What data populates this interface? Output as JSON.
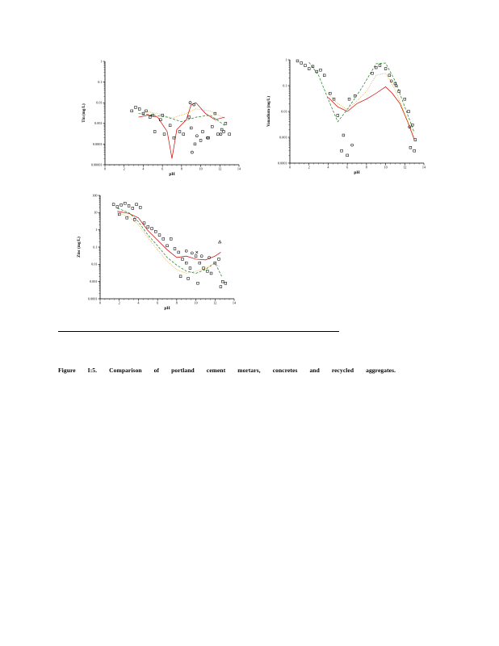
{
  "caption": {
    "text": "Figure I:5. Comparison of portland cement mortars, concretes and recycled aggregates."
  },
  "chart_data": [
    {
      "name": "tin",
      "type": "scatter",
      "title": "",
      "xlabel": "pH",
      "ylabel": "Tin  (mg/L)",
      "xlim": [
        0,
        14
      ],
      "xticks": [
        0,
        2,
        4,
        6,
        8,
        10,
        12,
        14
      ],
      "ylog": true,
      "ylim": [
        1e-05,
        1
      ],
      "yticks": [
        "1",
        "0.1",
        "0.01",
        "0.001",
        "0.0001",
        "0.00001"
      ],
      "grid": false,
      "legend": "none",
      "series": [
        {
          "name": "line-red-solid",
          "style": "line",
          "color": "#cc0000",
          "dash": "",
          "x": [
            3.5,
            4.5,
            5.5,
            6.5,
            7,
            7.5,
            8.5,
            9,
            9.5,
            10.5,
            11.5,
            12.5
          ],
          "y": [
            0.002,
            0.0025,
            0.002,
            0.0004,
            2e-05,
            0.0005,
            0.0015,
            0.008,
            0.01,
            0.003,
            0.0015,
            0.002
          ]
        },
        {
          "name": "line-green-dashed",
          "style": "line",
          "color": "#1a7a1a",
          "dash": "3 1.8",
          "x": [
            3.5,
            5,
            6.5,
            8,
            9.5,
            11,
            12.5
          ],
          "y": [
            0.003,
            0.0025,
            0.002,
            0.0012,
            0.002,
            0.0025,
            0.0008
          ]
        },
        {
          "name": "line-orange-dotted",
          "style": "line",
          "color": "#d99000",
          "dash": "0.8 1.4",
          "x": [
            4,
            5.5,
            7,
            8.5,
            9.5,
            11,
            12.5
          ],
          "y": [
            0.004,
            0.003,
            0.0018,
            0.003,
            0.005,
            0.004,
            0.0018
          ]
        },
        {
          "name": "markers-square",
          "style": "scatter",
          "marker": "square",
          "color": "#000000",
          "x": [
            2.8,
            3.2,
            3.6,
            4.0,
            4.3,
            4.7,
            5.2,
            5.8,
            6.2,
            6.8,
            7.2,
            7.8,
            8.2,
            8.8,
            9.4,
            10.2,
            10.8,
            11.2,
            11.8,
            12.2,
            12.6,
            13.0,
            5.0,
            6.0,
            9.0,
            10.0,
            11.5,
            12.4
          ],
          "y": [
            0.004,
            0.006,
            0.005,
            0.003,
            0.004,
            0.002,
            0.0004,
            0.0015,
            0.0003,
            0.0008,
            0.0002,
            0.0004,
            0.0003,
            0.002,
            0.0001,
            0.0004,
            0.0002,
            0.0007,
            0.0003,
            0.0005,
            0.001,
            0.0003,
            0.0025,
            0.0025,
            0.0006,
            0.00015,
            0.003,
            0.0004
          ]
        },
        {
          "name": "markers-circle",
          "style": "scatter",
          "marker": "circle",
          "color": "#000000",
          "x": [
            8.9,
            9.3,
            9.6,
            10.7,
            12.1,
            9.1
          ],
          "y": [
            0.01,
            0.008,
            0.00025,
            0.0002,
            0.0003,
            4e-05
          ]
        }
      ]
    },
    {
      "name": "vanadium",
      "type": "scatter",
      "title": "",
      "xlabel": "pH",
      "ylabel": "Vanadium  (mg/L)",
      "xlim": [
        0,
        14
      ],
      "xticks": [
        0,
        2,
        4,
        6,
        8,
        10,
        12,
        14
      ],
      "ylog": true,
      "ylim": [
        0.0001,
        1
      ],
      "yticks": [
        "1",
        "0.1",
        "0.01",
        "0.001",
        "0.0001"
      ],
      "grid": false,
      "legend": "none",
      "series": [
        {
          "name": "line-red-solid",
          "style": "line",
          "color": "#cc0000",
          "dash": "",
          "x": [
            4,
            5,
            6,
            7,
            8,
            9,
            10,
            10.7,
            11.5,
            12.3,
            13
          ],
          "y": [
            0.035,
            0.015,
            0.01,
            0.02,
            0.03,
            0.05,
            0.09,
            0.05,
            0.02,
            0.004,
            0.0008
          ]
        },
        {
          "name": "line-green-dashed",
          "style": "line",
          "color": "#1a7a1a",
          "dash": "3 1.8",
          "x": [
            2,
            3,
            4,
            5,
            6,
            7.5,
            9,
            10,
            11,
            12,
            13
          ],
          "y": [
            0.8,
            0.25,
            0.03,
            0.004,
            0.012,
            0.08,
            0.7,
            0.75,
            0.15,
            0.015,
            0.0015
          ]
        },
        {
          "name": "line-orange-dotted",
          "style": "line",
          "color": "#d99000",
          "dash": "0.8 1.4",
          "x": [
            4,
            5,
            6,
            7,
            8,
            9,
            10,
            11,
            12,
            13
          ],
          "y": [
            0.05,
            0.02,
            0.012,
            0.025,
            0.06,
            0.25,
            0.3,
            0.07,
            0.008,
            0.001
          ]
        },
        {
          "name": "markers-square",
          "style": "scatter",
          "marker": "square",
          "color": "#000000",
          "x": [
            0.8,
            1.2,
            1.6,
            2.0,
            2.4,
            2.8,
            3.2,
            3.6,
            4.2,
            5.0,
            5.6,
            6.2,
            6.8,
            8.6,
            9.0,
            9.4,
            10.0,
            10.4,
            11.0,
            11.4,
            12.0,
            12.4,
            12.8,
            13.1,
            5.4,
            6.0,
            12.6,
            13.0,
            4.6
          ],
          "y": [
            0.9,
            0.75,
            0.6,
            0.45,
            0.55,
            0.35,
            0.4,
            0.25,
            0.05,
            0.007,
            0.0012,
            0.03,
            0.04,
            0.3,
            0.5,
            0.6,
            0.45,
            0.25,
            0.12,
            0.06,
            0.03,
            0.01,
            0.003,
            0.0008,
            0.0003,
            0.0002,
            0.0004,
            0.0003,
            0.03
          ]
        },
        {
          "name": "markers-circle",
          "style": "scatter",
          "marker": "circle",
          "color": "#000000",
          "x": [
            10.6,
            11.1,
            6.5,
            12.5
          ],
          "y": [
            0.15,
            0.1,
            0.0005,
            0.0025
          ]
        }
      ]
    },
    {
      "name": "zinc",
      "type": "scatter",
      "title": "",
      "xlabel": "pH",
      "ylabel": "Zinc  (mg/L)",
      "xlim": [
        0,
        14
      ],
      "xticks": [
        0,
        2,
        4,
        6,
        8,
        10,
        12,
        14
      ],
      "ylog": true,
      "ylim": [
        0.0001,
        100
      ],
      "yticks": [
        "100",
        "10",
        "1",
        "0.1",
        "0.01",
        "0.001",
        "0.0001"
      ],
      "grid": false,
      "legend": "none",
      "series": [
        {
          "name": "line-red-solid",
          "style": "line",
          "color": "#cc0000",
          "dash": "",
          "x": [
            1.8,
            3,
            4,
            5,
            6,
            7,
            8,
            9,
            10,
            11,
            12,
            12.6
          ],
          "y": [
            12,
            9,
            5,
            0.9,
            0.25,
            0.07,
            0.025,
            0.03,
            0.02,
            0.018,
            0.03,
            0.05
          ]
        },
        {
          "name": "line-green-dashed",
          "style": "line",
          "color": "#1a7a1a",
          "dash": "3 1.8",
          "x": [
            1.8,
            3,
            4,
            5,
            6,
            7,
            8,
            9,
            10,
            11,
            12,
            12.7
          ],
          "y": [
            18,
            10,
            3,
            0.5,
            0.12,
            0.025,
            0.009,
            0.004,
            0.003,
            0.005,
            0.012,
            0.002
          ]
        },
        {
          "name": "line-orange-dotted",
          "style": "line",
          "color": "#d99000",
          "dash": "0.8 1.4",
          "x": [
            1.8,
            3,
            4,
            5,
            6,
            7,
            8,
            9,
            10,
            11,
            12,
            12.5
          ],
          "y": [
            10,
            6,
            2,
            0.35,
            0.07,
            0.015,
            0.005,
            0.003,
            0.004,
            0.006,
            0.012,
            0.007
          ]
        },
        {
          "name": "markers-square",
          "style": "scatter",
          "marker": "square",
          "color": "#000000",
          "x": [
            1.4,
            1.8,
            2.2,
            2.6,
            3.0,
            3.4,
            3.8,
            4.2,
            2.0,
            2.8,
            3.6,
            4.6,
            5.0,
            5.4,
            5.8,
            6.2,
            6.6,
            7.0,
            7.4,
            7.8,
            8.2,
            8.6,
            9.0,
            9.4,
            10.0,
            10.4,
            10.8,
            11.2,
            11.6,
            12.0,
            12.4,
            12.8,
            13.1,
            8.4,
            9.2,
            10.2,
            12.6
          ],
          "y": [
            30,
            22,
            28,
            35,
            25,
            18,
            30,
            20,
            8,
            5,
            4,
            2.5,
            1.5,
            1.2,
            0.8,
            0.5,
            0.3,
            0.12,
            0.3,
            0.08,
            0.05,
            0.02,
            0.012,
            0.006,
            0.03,
            0.012,
            0.006,
            0.004,
            0.003,
            0.012,
            0.02,
            0.001,
            0.0008,
            0.002,
            0.0015,
            0.0008,
            0.0005
          ]
        },
        {
          "name": "markers-circle",
          "style": "scatter",
          "marker": "circle",
          "color": "#000000",
          "x": [
            9.0,
            9.6,
            10.6,
            11.4
          ],
          "y": [
            0.06,
            0.045,
            0.03,
            0.025
          ]
        },
        {
          "name": "markers-triangle",
          "style": "scatter",
          "marker": "triangle",
          "color": "#000000",
          "x": [
            12.5
          ],
          "y": [
            0.2
          ]
        },
        {
          "name": "markers-cross",
          "style": "scatter",
          "marker": "cross",
          "color": "#000000",
          "x": [
            10.1
          ],
          "y": [
            0.05
          ]
        }
      ]
    }
  ]
}
